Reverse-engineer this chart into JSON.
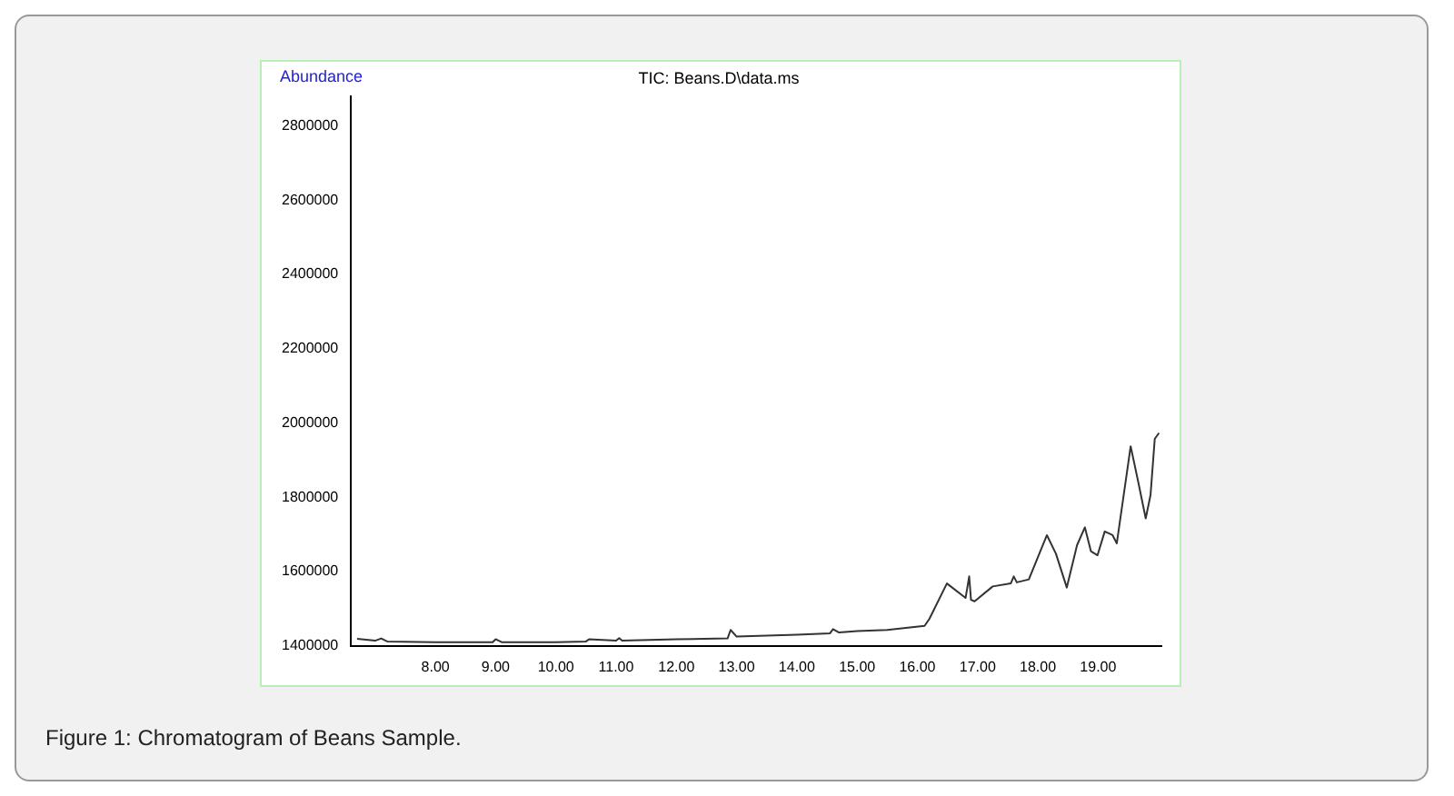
{
  "chart_data": {
    "type": "line",
    "title": "TIC: Beans.D\\data.ms",
    "ylabel": "Abundance",
    "annotations": [
      "Figure 1: Chromatogram of  Beans Sample."
    ],
    "x": [
      6.7,
      7.0,
      7.1,
      7.2,
      8.0,
      8.95,
      9.0,
      9.1,
      10.0,
      10.5,
      10.55,
      11.0,
      11.05,
      11.1,
      12.0,
      12.85,
      12.9,
      13.0,
      14.0,
      14.55,
      14.6,
      14.7,
      15.0,
      15.5,
      16.12,
      16.2,
      16.49,
      16.8,
      16.86,
      16.89,
      16.95,
      17.25,
      17.55,
      17.6,
      17.65,
      17.85,
      18.15,
      18.3,
      18.48,
      18.65,
      18.78,
      18.88,
      18.99,
      19.11,
      19.24,
      19.31,
      19.54,
      19.66,
      19.79,
      19.87,
      19.94,
      20.01
    ],
    "series": [
      {
        "color": "#333333",
        "values": [
          1419000,
          1414000,
          1420000,
          1412000,
          1410000,
          1410000,
          1418000,
          1410000,
          1410000,
          1412000,
          1418000,
          1414000,
          1421000,
          1414000,
          1418000,
          1420000,
          1443000,
          1425000,
          1430000,
          1434000,
          1445000,
          1436000,
          1440000,
          1443000,
          1454000,
          1473000,
          1568000,
          1529000,
          1587000,
          1524000,
          1520000,
          1560000,
          1568000,
          1587000,
          1571000,
          1579000,
          1698000,
          1648000,
          1557000,
          1671000,
          1719000,
          1655000,
          1644000,
          1708000,
          1698000,
          1676000,
          1937000,
          1846000,
          1743000,
          1806000,
          1957000,
          1973000
        ]
      }
    ],
    "xlim": [
      6.6,
      20.05
    ],
    "xticks": [
      {
        "value": 8,
        "label": "8.00"
      },
      {
        "value": 9,
        "label": "9.00"
      },
      {
        "value": 10,
        "label": "10.00"
      },
      {
        "value": 11,
        "label": "11.00"
      },
      {
        "value": 12,
        "label": "12.00"
      },
      {
        "value": 13,
        "label": "13.00"
      },
      {
        "value": 14,
        "label": "14.00"
      },
      {
        "value": 15,
        "label": "15.00"
      },
      {
        "value": 16,
        "label": "16.00"
      },
      {
        "value": 17,
        "label": "17.00"
      },
      {
        "value": 18,
        "label": "18.00"
      },
      {
        "value": 19,
        "label": "19.00"
      }
    ],
    "ylim": [
      1400000,
      2880000
    ],
    "yticks": [
      1400000,
      1600000,
      1800000,
      2000000,
      2200000,
      2400000,
      2600000,
      2800000
    ],
    "grid": false,
    "legend": false,
    "marker": "none",
    "line_style": "solid"
  }
}
